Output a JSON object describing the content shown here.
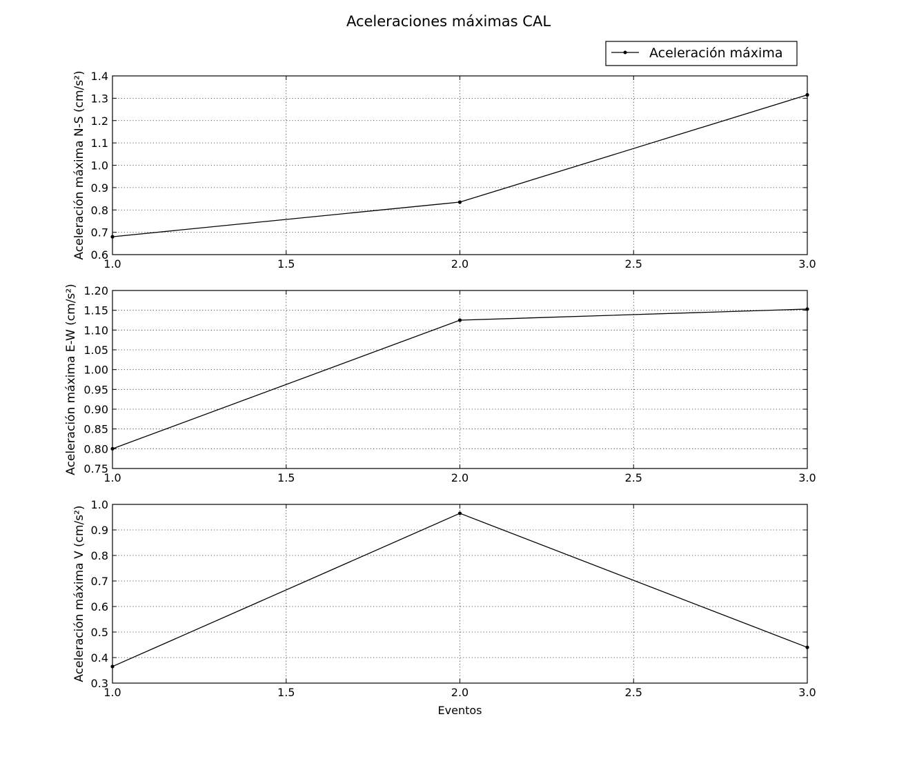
{
  "title": "Aceleraciones máximas CAL",
  "legend": {
    "label": "Aceleración máxima",
    "position": "upper-right"
  },
  "chart_data": [
    {
      "type": "line",
      "title": "",
      "xlabel": "",
      "ylabel": "Aceleración máxima N-S (cm/s²)",
      "x": [
        1.0,
        2.0,
        3.0
      ],
      "series": [
        {
          "name": "Aceleración máxima",
          "values": [
            0.68,
            0.835,
            1.315
          ]
        }
      ],
      "xlim": [
        1.0,
        3.0
      ],
      "ylim": [
        0.6,
        1.4
      ],
      "xticks": [
        "1.0",
        "1.5",
        "2.0",
        "2.5",
        "3.0"
      ],
      "yticks": [
        "0.6",
        "0.7",
        "0.8",
        "0.9",
        "1.0",
        "1.1",
        "1.2",
        "1.3",
        "1.4"
      ],
      "grid": true
    },
    {
      "type": "line",
      "title": "",
      "xlabel": "",
      "ylabel": "Aceleración máxima E-W (cm/s²)",
      "x": [
        1.0,
        2.0,
        3.0
      ],
      "series": [
        {
          "name": "Aceleración máxima",
          "values": [
            0.8,
            1.125,
            1.153
          ]
        }
      ],
      "xlim": [
        1.0,
        3.0
      ],
      "ylim": [
        0.75,
        1.2
      ],
      "xticks": [
        "1.0",
        "1.5",
        "2.0",
        "2.5",
        "3.0"
      ],
      "yticks": [
        "0.75",
        "0.80",
        "0.85",
        "0.90",
        "0.95",
        "1.00",
        "1.05",
        "1.10",
        "1.15",
        "1.20"
      ],
      "grid": true
    },
    {
      "type": "line",
      "title": "",
      "xlabel": "Eventos",
      "ylabel": "Aceleración máxima V (cm/s²)",
      "x": [
        1.0,
        2.0,
        3.0
      ],
      "series": [
        {
          "name": "Aceleración máxima",
          "values": [
            0.365,
            0.965,
            0.44
          ]
        }
      ],
      "xlim": [
        1.0,
        3.0
      ],
      "ylim": [
        0.3,
        1.0
      ],
      "xticks": [
        "1.0",
        "1.5",
        "2.0",
        "2.5",
        "3.0"
      ],
      "yticks": [
        "0.3",
        "0.4",
        "0.5",
        "0.6",
        "0.7",
        "0.8",
        "0.9",
        "1.0"
      ],
      "grid": true
    }
  ]
}
